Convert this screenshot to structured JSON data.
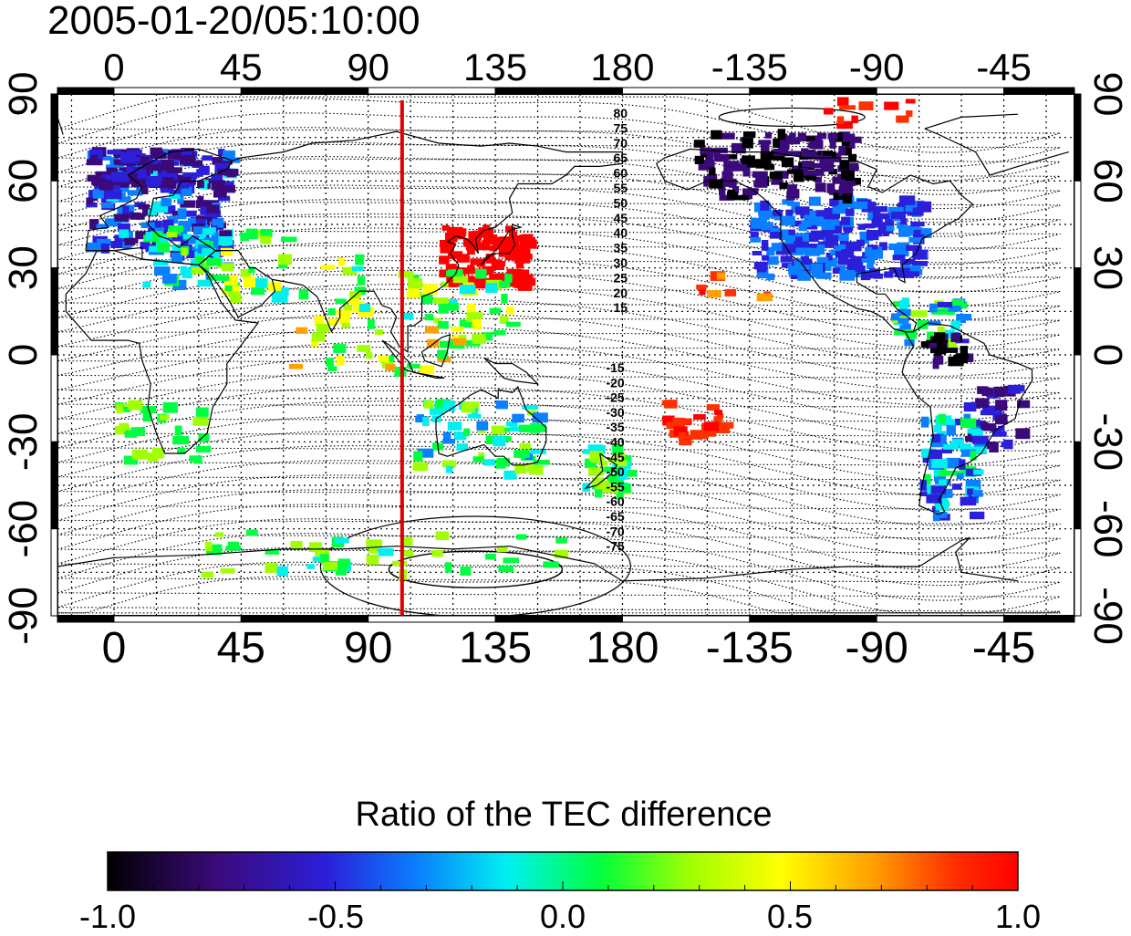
{
  "title": "2005-01-20/05:10:00",
  "axes": {
    "lon_ticks": [
      "0",
      "45",
      "90",
      "135",
      "180",
      "-135",
      "-90",
      "-45"
    ],
    "lat_ticks": [
      "90",
      "60",
      "30",
      "0",
      "-30",
      "-60",
      "-90"
    ]
  },
  "marker_meridian_lon": 102,
  "contour_labels_north": [
    "80",
    "75",
    "70",
    "65",
    "60",
    "55",
    "50",
    "45",
    "40",
    "35",
    "30",
    "25",
    "20",
    "15"
  ],
  "contour_labels_south": [
    "-15",
    "-20",
    "-25",
    "-30",
    "-35",
    "-40",
    "-45",
    "-50",
    "-55",
    "-60",
    "-65",
    "-70",
    "-75"
  ],
  "colorbar": {
    "title": "Ratio of the TEC difference",
    "range": [
      -1.0,
      1.0
    ],
    "tick_labels": [
      "-1.0",
      "-0.5",
      "0.0",
      "0.5",
      "1.0"
    ]
  },
  "colors": {
    "marker_line": "#e00000",
    "colormap": [
      "#000000",
      "#3b0a7a",
      "#2b1fd9",
      "#0a7fff",
      "#00f0f0",
      "#00ff40",
      "#a0ff00",
      "#ffff00",
      "#ffa000",
      "#ff3000",
      "#ff0000"
    ]
  }
}
